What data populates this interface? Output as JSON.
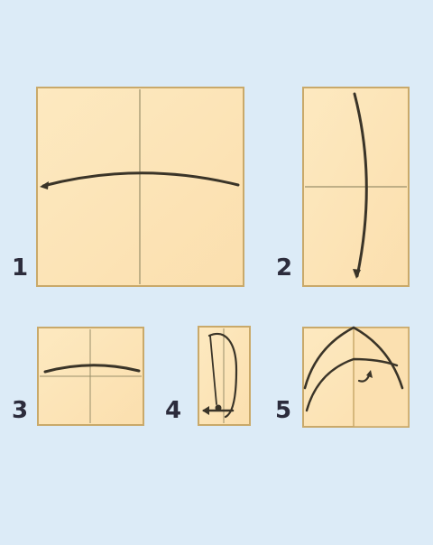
{
  "colors": {
    "background": "#dcebf7",
    "paper": "#fde5b8",
    "paper_edge": "#c9a96a",
    "fold_line": "#8a8a6a",
    "arrow": "#3a3428",
    "numeral": "#2c2c3c"
  },
  "steps": [
    {
      "number": "1"
    },
    {
      "number": "2"
    },
    {
      "number": "3"
    },
    {
      "number": "4"
    },
    {
      "number": "5"
    }
  ]
}
